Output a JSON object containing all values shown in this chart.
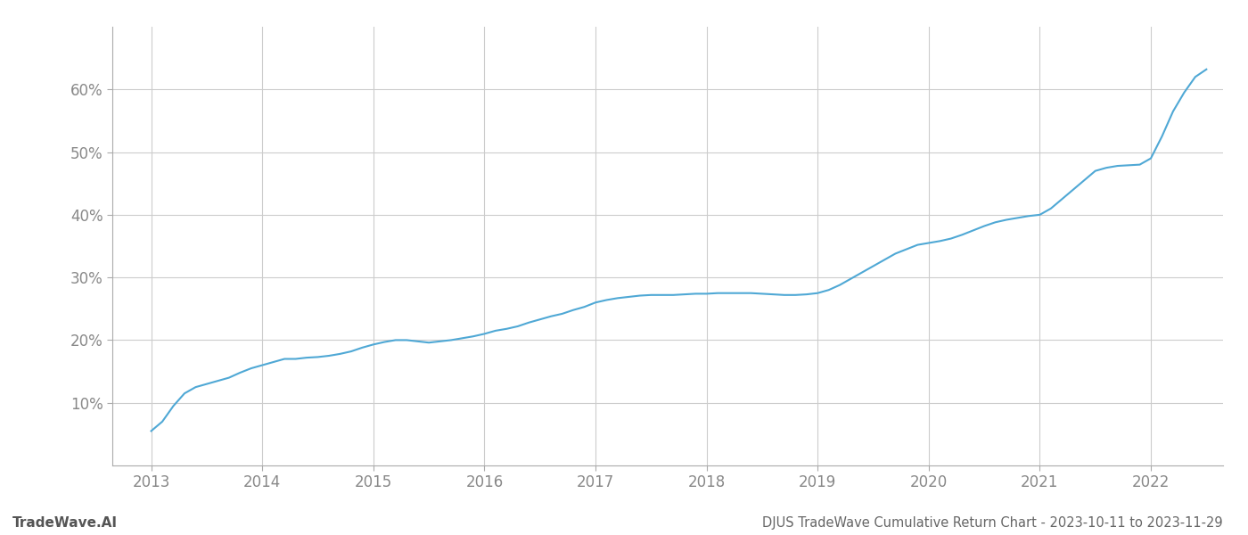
{
  "title": "DJUS TradeWave Cumulative Return Chart - 2023-10-11 to 2023-11-29",
  "watermark": "TradeWave.AI",
  "line_color": "#4fa8d5",
  "background_color": "#ffffff",
  "grid_color": "#cccccc",
  "x_years": [
    2013,
    2014,
    2015,
    2016,
    2017,
    2018,
    2019,
    2020,
    2021,
    2022
  ],
  "x_values": [
    2013.0,
    2013.1,
    2013.2,
    2013.3,
    2013.4,
    2013.5,
    2013.6,
    2013.7,
    2013.8,
    2013.9,
    2014.0,
    2014.1,
    2014.2,
    2014.3,
    2014.4,
    2014.5,
    2014.6,
    2014.7,
    2014.8,
    2014.9,
    2015.0,
    2015.1,
    2015.2,
    2015.3,
    2015.4,
    2015.5,
    2015.6,
    2015.7,
    2015.8,
    2015.9,
    2016.0,
    2016.1,
    2016.2,
    2016.3,
    2016.4,
    2016.5,
    2016.6,
    2016.7,
    2016.8,
    2016.9,
    2017.0,
    2017.1,
    2017.2,
    2017.3,
    2017.4,
    2017.5,
    2017.6,
    2017.7,
    2017.8,
    2017.9,
    2018.0,
    2018.1,
    2018.2,
    2018.3,
    2018.4,
    2018.5,
    2018.6,
    2018.7,
    2018.8,
    2018.9,
    2019.0,
    2019.1,
    2019.2,
    2019.3,
    2019.4,
    2019.5,
    2019.6,
    2019.7,
    2019.8,
    2019.9,
    2020.0,
    2020.1,
    2020.2,
    2020.3,
    2020.4,
    2020.5,
    2020.6,
    2020.7,
    2020.8,
    2020.9,
    2021.0,
    2021.1,
    2021.2,
    2021.3,
    2021.4,
    2021.5,
    2021.6,
    2021.7,
    2021.8,
    2021.9,
    2022.0,
    2022.1,
    2022.2,
    2022.3,
    2022.4,
    2022.5
  ],
  "y_values": [
    5.5,
    7.0,
    9.5,
    11.5,
    12.5,
    13.0,
    13.5,
    14.0,
    14.8,
    15.5,
    16.0,
    16.5,
    17.0,
    17.0,
    17.2,
    17.3,
    17.5,
    17.8,
    18.2,
    18.8,
    19.3,
    19.7,
    20.0,
    20.0,
    19.8,
    19.6,
    19.8,
    20.0,
    20.3,
    20.6,
    21.0,
    21.5,
    21.8,
    22.2,
    22.8,
    23.3,
    23.8,
    24.2,
    24.8,
    25.3,
    26.0,
    26.4,
    26.7,
    26.9,
    27.1,
    27.2,
    27.2,
    27.2,
    27.3,
    27.4,
    27.4,
    27.5,
    27.5,
    27.5,
    27.5,
    27.4,
    27.3,
    27.2,
    27.2,
    27.3,
    27.5,
    28.0,
    28.8,
    29.8,
    30.8,
    31.8,
    32.8,
    33.8,
    34.5,
    35.2,
    35.5,
    35.8,
    36.2,
    36.8,
    37.5,
    38.2,
    38.8,
    39.2,
    39.5,
    39.8,
    40.0,
    41.0,
    42.5,
    44.0,
    45.5,
    47.0,
    47.5,
    47.8,
    47.9,
    48.0,
    49.0,
    52.5,
    56.5,
    59.5,
    62.0,
    63.2
  ],
  "ylim": [
    0,
    70
  ],
  "yticks": [
    10,
    20,
    30,
    40,
    50,
    60
  ],
  "xlim": [
    2012.65,
    2022.65
  ],
  "title_color": "#666666",
  "watermark_color": "#555555",
  "title_fontsize": 10.5,
  "watermark_fontsize": 11,
  "tick_color": "#888888",
  "tick_fontsize": 12,
  "line_width": 1.5
}
